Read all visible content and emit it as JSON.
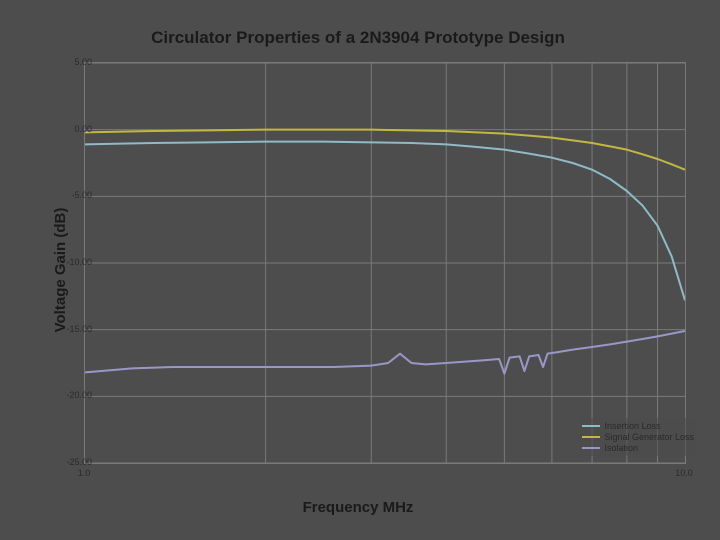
{
  "chart": {
    "type": "line",
    "title": "Circulator Properties of a 2N3904 Prototype Design",
    "title_fontsize": 17,
    "xlabel": "Frequency MHz",
    "ylabel": "Voltage Gain (dB)",
    "label_fontsize": 15,
    "background_color": "#4d4d4d",
    "plot_background_color": "#4d4d4d",
    "yticks": [
      5.0,
      0.0,
      -5.0,
      -10.0,
      -15.0,
      -20.0,
      -25.0
    ],
    "ytick_labels": [
      "5.00",
      "0.00",
      "-5.00",
      "-10.00",
      "-15.00",
      "-20.00",
      "-25.00"
    ],
    "ylim": [
      -25.0,
      5.0
    ],
    "xscale": "log",
    "xlim": [
      1.0,
      10.0
    ],
    "xtick_labels": [
      "1.0",
      "10.0"
    ],
    "xticks": [
      1.0,
      10.0
    ],
    "x_minor_ticks": [
      2.0,
      3.0,
      4.0,
      5.0,
      6.0,
      7.0,
      8.0,
      9.0
    ],
    "grid_color": "#7a7a7a",
    "tick_fontsize": 9,
    "series": [
      {
        "name": "Insertion Loss",
        "color": "#8fbac6",
        "line_width": 2,
        "x": [
          1.0,
          1.3,
          1.6,
          2.0,
          2.5,
          3.0,
          3.5,
          4.0,
          4.5,
          5.0,
          5.5,
          6.0,
          6.5,
          7.0,
          7.5,
          8.0,
          8.5,
          9.0,
          9.5,
          10.0
        ],
        "y": [
          -1.1,
          -1.0,
          -0.95,
          -0.9,
          -0.9,
          -0.95,
          -1.0,
          -1.1,
          -1.3,
          -1.5,
          -1.8,
          -2.1,
          -2.5,
          -3.0,
          -3.7,
          -4.6,
          -5.7,
          -7.2,
          -9.5,
          -12.8
        ]
      },
      {
        "name": "Signal Generator Loss",
        "color": "#c2b841",
        "line_width": 2,
        "x": [
          1.0,
          1.3,
          1.6,
          2.0,
          2.5,
          3.0,
          3.5,
          4.0,
          4.5,
          5.0,
          5.5,
          6.0,
          6.5,
          7.0,
          7.5,
          8.0,
          8.5,
          9.0,
          9.5,
          10.0
        ],
        "y": [
          -0.2,
          -0.1,
          -0.05,
          0.0,
          0.0,
          0.0,
          -0.05,
          -0.1,
          -0.2,
          -0.3,
          -0.45,
          -0.6,
          -0.8,
          -1.0,
          -1.25,
          -1.5,
          -1.85,
          -2.2,
          -2.6,
          -3.0
        ]
      },
      {
        "name": "Isolation",
        "color": "#9a97c8",
        "line_width": 2,
        "x": [
          1.0,
          1.2,
          1.4,
          1.6,
          1.8,
          2.0,
          2.3,
          2.6,
          3.0,
          3.2,
          3.35,
          3.5,
          3.7,
          4.0,
          4.3,
          4.6,
          4.9,
          5.0,
          5.1,
          5.3,
          5.4,
          5.5,
          5.7,
          5.8,
          5.9,
          6.1,
          6.5,
          7.0,
          7.5,
          8.0,
          8.5,
          9.0,
          9.5,
          10.0
        ],
        "y": [
          -18.2,
          -17.9,
          -17.8,
          -17.8,
          -17.8,
          -17.8,
          -17.8,
          -17.8,
          -17.7,
          -17.5,
          -16.8,
          -17.5,
          -17.6,
          -17.5,
          -17.4,
          -17.3,
          -17.2,
          -18.3,
          -17.1,
          -17.0,
          -18.1,
          -17.0,
          -16.9,
          -17.8,
          -16.8,
          -16.7,
          -16.5,
          -16.3,
          -16.1,
          -15.9,
          -15.7,
          -15.5,
          -15.3,
          -15.1
        ]
      }
    ],
    "legend_fontsize": 9,
    "legend_position": "bottom-right-inside"
  }
}
